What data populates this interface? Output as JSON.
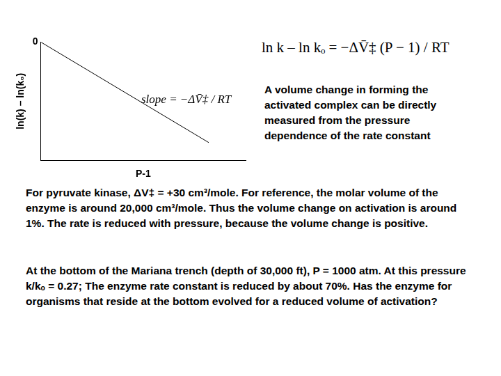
{
  "chart_data": {
    "type": "line",
    "x_label": "P-1",
    "y_label": "ln(k) – ln(k₀)",
    "x": [
      0,
      0.82
    ],
    "values": [
      0,
      -0.85
    ],
    "xlim": [
      0,
      1
    ],
    "ylim": [
      -1,
      0
    ],
    "xticks": [],
    "yticks": [
      0
    ],
    "tick_labels": "y",
    "grid": false,
    "color": "#000000",
    "annotations": [
      {
        "text": "slope = −ΔV̄‡ / RT"
      }
    ]
  },
  "equation": "ln k – ln kₒ = −ΔV̄‡ (P − 1) / RT",
  "caption": "A volume change in forming the activated complex can be directly measured from the pressure dependence of the rate constant",
  "paragraphs": [
    "For pyruvate kinase, ΔV‡ = +30 cm³/mole. For reference, the molar volume of the enzyme is around 20,000 cm³/mole. Thus the volume change on activation is around 1%. The rate is reduced with pressure, because the volume change is positive.",
    "At the bottom of the Mariana trench (depth of 30,000 ft), P = 1000 atm. At this pressure k/kₒ = 0.27; The enzyme rate constant is reduced by about 70%. Has the enzyme for organisms that reside at the bottom evolved for a reduced volume of activation?"
  ]
}
